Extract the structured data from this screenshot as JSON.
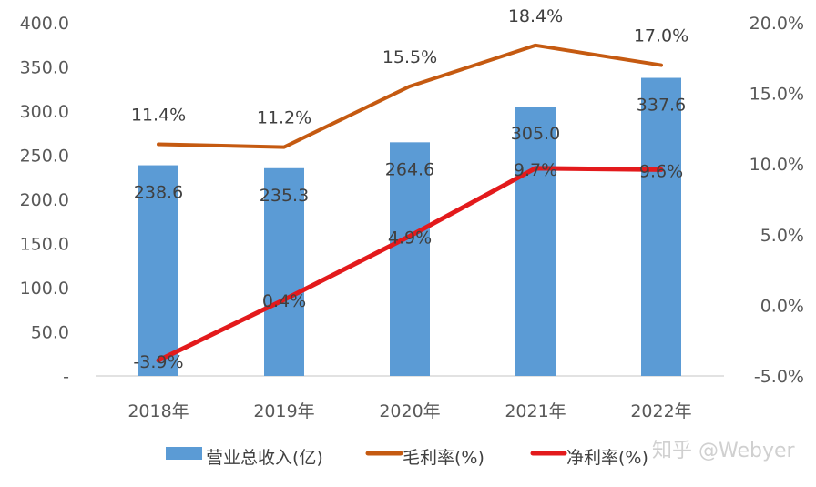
{
  "chart_data": {
    "type": "bar+line",
    "title": "",
    "categories": [
      "2018年",
      "2019年",
      "2020年",
      "2021年",
      "2022年"
    ],
    "series": [
      {
        "name": "营业总收入(亿)",
        "type": "bar",
        "axis": "left",
        "color": "#5B9BD5",
        "values": [
          238.6,
          235.3,
          264.6,
          305.0,
          337.6
        ],
        "labels": [
          "238.6",
          "235.3",
          "264.6",
          "305.0",
          "337.6"
        ]
      },
      {
        "name": "毛利率(%)",
        "type": "line",
        "axis": "right",
        "color": "#C55A11",
        "values": [
          11.4,
          11.2,
          15.5,
          18.4,
          17.0
        ],
        "labels": [
          "11.4%",
          "11.2%",
          "15.5%",
          "18.4%",
          "17.0%"
        ]
      },
      {
        "name": "净利率(%)",
        "type": "line",
        "axis": "right",
        "color": "#E31A1C",
        "values": [
          -3.9,
          0.4,
          4.9,
          9.7,
          9.6
        ],
        "labels": [
          "-3.9%",
          "0.4%",
          "4.9%",
          "9.7%",
          "9.6%"
        ]
      }
    ],
    "left_axis": {
      "ylim": [
        0,
        400
      ],
      "ticks": [
        400,
        350,
        300,
        250,
        200,
        150,
        100,
        50,
        0
      ],
      "tick_labels": [
        "400.0",
        "350.0",
        "300.0",
        "250.0",
        "200.0",
        "150.0",
        "100.0",
        "50.0",
        "-"
      ]
    },
    "right_axis": {
      "ylim": [
        -5,
        20
      ],
      "ticks": [
        20,
        15,
        10,
        5,
        0,
        -5
      ],
      "tick_labels": [
        "20.0%",
        "15.0%",
        "10.0%",
        "5.0%",
        "0.0%",
        "-5.0%"
      ]
    },
    "grid": false,
    "legend_position": "bottom",
    "watermark": "知乎 @Webyer"
  }
}
